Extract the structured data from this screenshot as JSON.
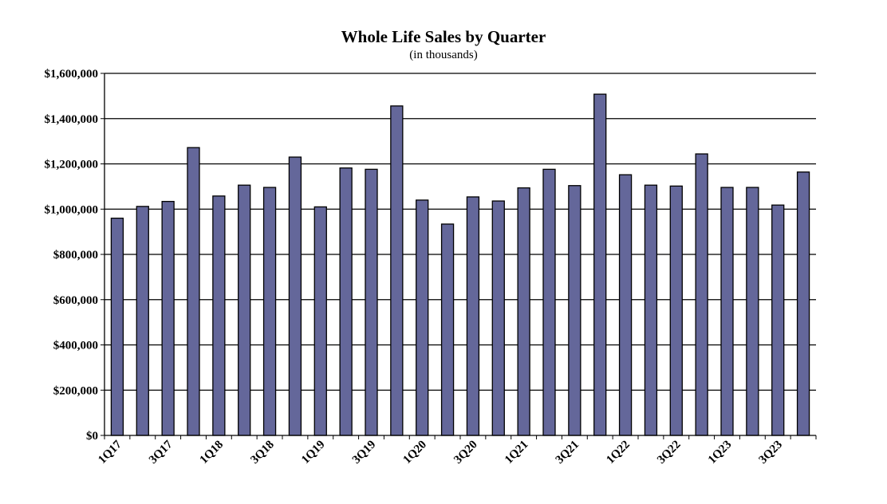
{
  "chart_data": {
    "type": "bar",
    "title": "Whole Life Sales by Quarter",
    "subtitle": "(in thousands)",
    "xlabel": "",
    "ylabel": "",
    "ylim": [
      0,
      1600000
    ],
    "y_ticks": [
      "$0",
      "$200,000",
      "$400,000",
      "$600,000",
      "$800,000",
      "$1,000,000",
      "$1,200,000",
      "$1,400,000",
      "$1,600,000"
    ],
    "y_tick_values": [
      0,
      200000,
      400000,
      600000,
      800000,
      1000000,
      1200000,
      1400000,
      1600000
    ],
    "x_tick_labels": [
      "1Q17",
      "3Q17",
      "1Q18",
      "3Q18",
      "1Q19",
      "3Q19",
      "1Q20",
      "3Q20",
      "1Q21",
      "3Q21",
      "1Q22",
      "3Q22",
      "1Q23",
      "3Q23"
    ],
    "categories": [
      "1Q17",
      "2Q17",
      "3Q17",
      "4Q17",
      "1Q18",
      "2Q18",
      "3Q18",
      "4Q18",
      "1Q19",
      "2Q19",
      "3Q19",
      "4Q19",
      "1Q20",
      "2Q20",
      "3Q20",
      "4Q20",
      "1Q21",
      "2Q21",
      "3Q21",
      "4Q21",
      "1Q22",
      "2Q22",
      "3Q22",
      "4Q22",
      "1Q23",
      "2Q23",
      "3Q23",
      "4Q23"
    ],
    "values": [
      960000,
      1012000,
      1034000,
      1272000,
      1058000,
      1106000,
      1096000,
      1230000,
      1010000,
      1182000,
      1176000,
      1456000,
      1040000,
      934000,
      1054000,
      1036000,
      1094000,
      1176000,
      1104000,
      1508000,
      1152000,
      1106000,
      1102000,
      1244000,
      1096000,
      1096000,
      1018000,
      1164000
    ],
    "grid": true,
    "legend": "none",
    "colors": {
      "bar_fill": "#64679a",
      "bar_stroke": "#000000",
      "grid": "#000000"
    }
  }
}
